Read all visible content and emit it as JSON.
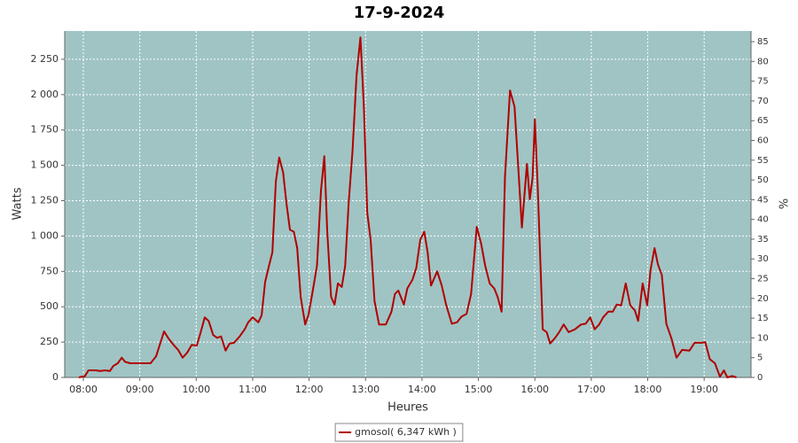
{
  "chart_data": {
    "type": "line",
    "title": "17-9-2024",
    "x_label": "Heures",
    "y_label": "Watts",
    "y2_label": "%",
    "xlim": [
      7.67,
      19.83
    ],
    "xticks": [
      {
        "value": 8,
        "label": "08:00"
      },
      {
        "value": 9,
        "label": "09:00"
      },
      {
        "value": 10,
        "label": "10:00"
      },
      {
        "value": 11,
        "label": "11:00"
      },
      {
        "value": 12,
        "label": "12:00"
      },
      {
        "value": 13,
        "label": "13:00"
      },
      {
        "value": 14,
        "label": "14:00"
      },
      {
        "value": 15,
        "label": "15:00"
      },
      {
        "value": 16,
        "label": "16:00"
      },
      {
        "value": 17,
        "label": "17:00"
      },
      {
        "value": 18,
        "label": "18:00"
      },
      {
        "value": 19,
        "label": "19:00"
      }
    ],
    "ylim": [
      0,
      2450
    ],
    "yticks": [
      0,
      250,
      500,
      750,
      {
        "value": 1000,
        "label": "1 000"
      },
      {
        "value": 1250,
        "label": "1 250"
      },
      {
        "value": 1500,
        "label": "1 500"
      },
      {
        "value": 1750,
        "label": "1 750"
      },
      {
        "value": 2000,
        "label": "2 000"
      },
      {
        "value": 2250,
        "label": "2 250"
      }
    ],
    "y2lim": [
      0,
      87.7
    ],
    "y2ticks": [
      0,
      5,
      10,
      15,
      20,
      25,
      30,
      35,
      40,
      45,
      50,
      55,
      60,
      65,
      70,
      75,
      80,
      85
    ],
    "grid": true,
    "background": "#a0c4c4",
    "legend": "bottom",
    "series": [
      {
        "name": "gmosol( 6,347 kWh )",
        "color": "#b00000",
        "x": [
          7.92,
          8.03,
          8.09,
          8.22,
          8.3,
          8.38,
          8.47,
          8.53,
          8.61,
          8.68,
          8.74,
          8.83,
          9.04,
          9.19,
          9.29,
          9.35,
          9.43,
          9.51,
          9.6,
          9.68,
          9.76,
          9.84,
          9.92,
          10.01,
          10.08,
          10.15,
          10.22,
          10.3,
          10.37,
          10.44,
          10.52,
          10.59,
          10.67,
          10.77,
          10.86,
          10.92,
          11.0,
          11.1,
          11.16,
          11.22,
          11.29,
          11.35,
          11.41,
          11.47,
          11.54,
          11.6,
          11.66,
          11.73,
          11.79,
          11.85,
          11.93,
          11.99,
          12.06,
          12.14,
          12.21,
          12.27,
          12.32,
          12.39,
          12.45,
          12.51,
          12.58,
          12.64,
          12.7,
          12.77,
          12.84,
          12.91,
          12.97,
          13.03,
          13.09,
          13.16,
          13.24,
          13.36,
          13.46,
          13.52,
          13.58,
          13.68,
          13.74,
          13.83,
          13.9,
          13.97,
          14.04,
          14.1,
          14.16,
          14.27,
          14.35,
          14.43,
          14.53,
          14.62,
          14.7,
          14.79,
          14.87,
          14.97,
          15.05,
          15.12,
          15.2,
          15.28,
          15.34,
          15.41,
          15.47,
          15.56,
          15.64,
          15.74,
          15.77,
          15.81,
          15.86,
          15.91,
          15.96,
          16.0,
          16.05,
          16.1,
          16.14,
          16.21,
          16.27,
          16.35,
          16.43,
          16.51,
          16.6,
          16.71,
          16.82,
          16.9,
          16.98,
          17.06,
          17.14,
          17.21,
          17.3,
          17.38,
          17.45,
          17.53,
          17.61,
          17.69,
          17.77,
          17.83,
          17.91,
          17.99,
          18.05,
          18.12,
          18.18,
          18.25,
          18.33,
          18.42,
          18.51,
          18.61,
          18.74,
          18.83,
          18.96,
          19.02,
          19.1,
          19.19,
          19.28,
          19.35,
          19.41,
          19.5,
          19.57
        ],
        "values": [
          0,
          10,
          50,
          50,
          45,
          50,
          45,
          80,
          100,
          140,
          110,
          100,
          100,
          100,
          150,
          225,
          325,
          275,
          230,
          195,
          140,
          175,
          230,
          225,
          320,
          425,
          400,
          300,
          280,
          290,
          190,
          240,
          245,
          290,
          340,
          390,
          425,
          390,
          440,
          675,
          790,
          885,
          1385,
          1555,
          1450,
          1230,
          1045,
          1030,
          915,
          570,
          375,
          445,
          600,
          790,
          1320,
          1565,
          1040,
          570,
          515,
          665,
          640,
          790,
          1230,
          1605,
          2135,
          2405,
          1915,
          1165,
          975,
          540,
          375,
          375,
          465,
          590,
          615,
          515,
          630,
          690,
          775,
          975,
          1030,
          885,
          650,
          750,
          650,
          510,
          380,
          390,
          430,
          450,
          590,
          1065,
          945,
          790,
          665,
          630,
          570,
          465,
          1415,
          2030,
          1915,
          1260,
          1060,
          1260,
          1510,
          1260,
          1415,
          1825,
          1355,
          790,
          340,
          320,
          240,
          275,
          320,
          375,
          320,
          340,
          375,
          380,
          425,
          340,
          375,
          425,
          465,
          465,
          515,
          510,
          665,
          510,
          475,
          400,
          665,
          510,
          760,
          915,
          800,
          725,
          380,
          275,
          140,
          195,
          190,
          245,
          245,
          250,
          130,
          100,
          5,
          50,
          0,
          10,
          0
        ]
      }
    ]
  }
}
